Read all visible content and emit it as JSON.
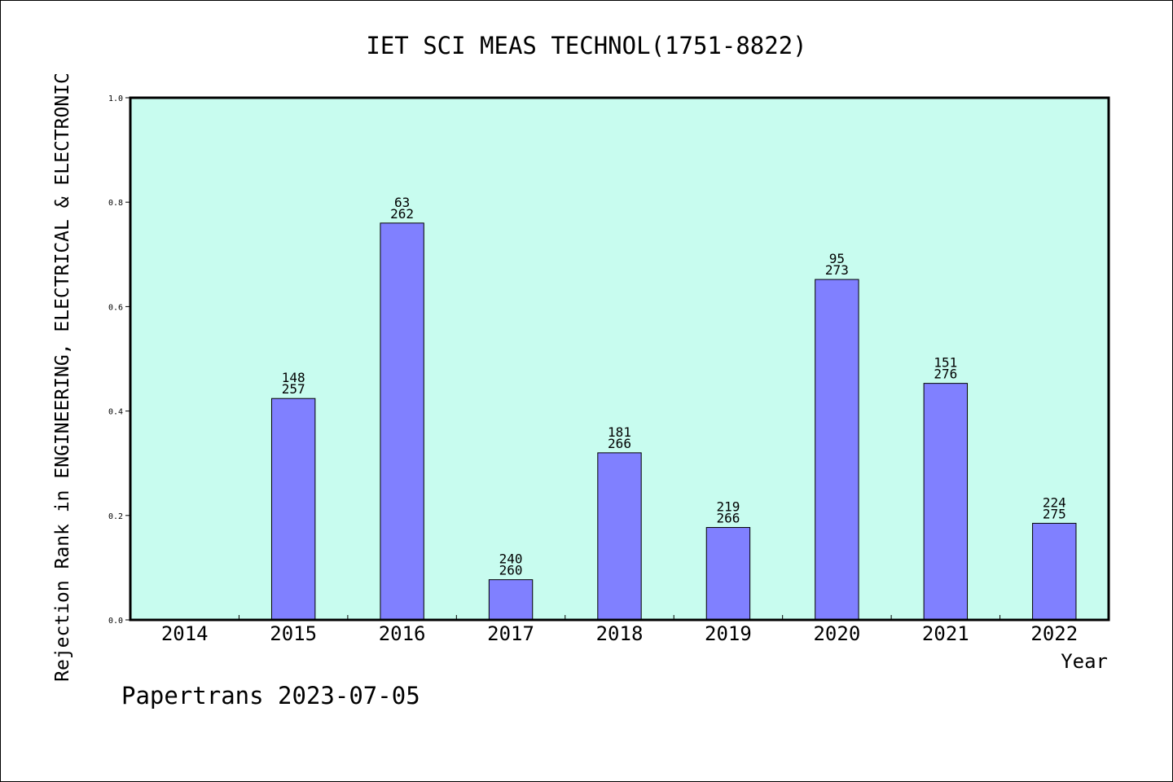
{
  "chart_data": {
    "type": "bar",
    "title": "IET SCI MEAS TECHNOL(1751-8822)",
    "xlabel": "Year",
    "ylabel": "Rejection Rank in ENGINEERING, ELECTRICAL & ELECTRONIC",
    "categories": [
      "2014",
      "2015",
      "2016",
      "2017",
      "2018",
      "2019",
      "2020",
      "2021",
      "2022"
    ],
    "values": [
      null,
      0.424,
      0.76,
      0.077,
      0.32,
      0.177,
      0.652,
      0.453,
      0.185
    ],
    "rank": [
      null,
      "148",
      "63",
      "240",
      "181",
      "219",
      "95",
      "151",
      "224"
    ],
    "total": [
      null,
      "257",
      "262",
      "260",
      "266",
      "266",
      "273",
      "276",
      "275"
    ],
    "ylim": [
      0,
      1.0
    ],
    "yticks": [
      "0.0",
      "0.2",
      "0.4",
      "0.6",
      "0.8",
      "1.0"
    ],
    "grid": false,
    "colors": {
      "plot_background": "#c8fcef",
      "bar": "#8080ff",
      "bar_edge": "#000000"
    }
  },
  "footer": "Papertrans 2023-07-05"
}
